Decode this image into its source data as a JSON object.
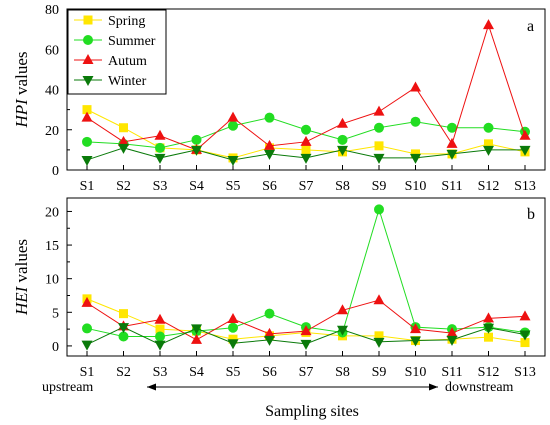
{
  "colors": {
    "Spring": "#ffe600",
    "Summer": "#22dd22",
    "Autum": "#ee1111",
    "Winter": "#0a7a0a"
  },
  "arrow_labels": {
    "upstream": "upstream",
    "downstream": "downstream"
  },
  "xlabel_shared": "Sampling sites",
  "chart_data": [
    {
      "type": "line",
      "panel_label": "a",
      "ylabel_italic": "HPI",
      "ylabel_rest": " values",
      "xlabel": "",
      "categories": [
        "S1",
        "S2",
        "S3",
        "S4",
        "S5",
        "S6",
        "S7",
        "S8",
        "S9",
        "S10",
        "S11",
        "S12",
        "S13"
      ],
      "ylim": [
        0,
        80
      ],
      "yticks": [
        "0",
        "20",
        "40",
        "60",
        "80"
      ],
      "legend_position": "top-left",
      "series": [
        {
          "name": "Spring",
          "marker": "square",
          "values": [
            30,
            21,
            11,
            10,
            6,
            11,
            10,
            9,
            12,
            8,
            8,
            13,
            9
          ]
        },
        {
          "name": "Summer",
          "marker": "circle",
          "values": [
            14,
            13,
            11,
            15,
            22,
            26,
            20,
            15,
            21,
            24,
            21,
            21,
            19
          ]
        },
        {
          "name": "Autum",
          "marker": "triangle-up",
          "values": [
            26,
            14,
            17,
            10,
            26,
            12,
            14,
            23,
            29,
            41,
            13,
            72,
            17
          ]
        },
        {
          "name": "Winter",
          "marker": "triangle-down",
          "values": [
            5,
            11,
            6,
            10,
            5,
            8,
            6,
            10,
            6,
            6,
            8,
            10,
            10
          ]
        }
      ]
    },
    {
      "type": "line",
      "panel_label": "b",
      "ylabel_italic": "HEI",
      "ylabel_rest": " values",
      "xlabel": "",
      "categories": [
        "S1",
        "S2",
        "S3",
        "S4",
        "S5",
        "S6",
        "S7",
        "S8",
        "S9",
        "S10",
        "S11",
        "S12",
        "S13"
      ],
      "ylim": [
        -1.5,
        22
      ],
      "yticks": [
        "0",
        "5",
        "10",
        "15",
        "20"
      ],
      "series": [
        {
          "name": "Spring",
          "marker": "square",
          "values": [
            7.0,
            4.8,
            2.5,
            2.2,
            1.0,
            1.5,
            2.0,
            1.5,
            1.5,
            0.8,
            1.0,
            1.3,
            0.5
          ]
        },
        {
          "name": "Summer",
          "marker": "circle",
          "values": [
            2.6,
            1.4,
            1.4,
            2.2,
            2.7,
            4.8,
            2.8,
            2.0,
            20.3,
            2.8,
            2.5,
            2.8,
            2.0
          ]
        },
        {
          "name": "Autum",
          "marker": "triangle-up",
          "values": [
            6.4,
            2.9,
            3.9,
            0.9,
            4.0,
            1.8,
            2.2,
            5.3,
            6.8,
            2.5,
            1.9,
            4.1,
            4.4
          ]
        },
        {
          "name": "Winter",
          "marker": "triangle-down",
          "values": [
            0.2,
            2.8,
            0.2,
            2.6,
            0.4,
            0.9,
            0.3,
            2.4,
            0.6,
            0.8,
            0.9,
            2.7,
            1.7
          ]
        }
      ]
    }
  ]
}
